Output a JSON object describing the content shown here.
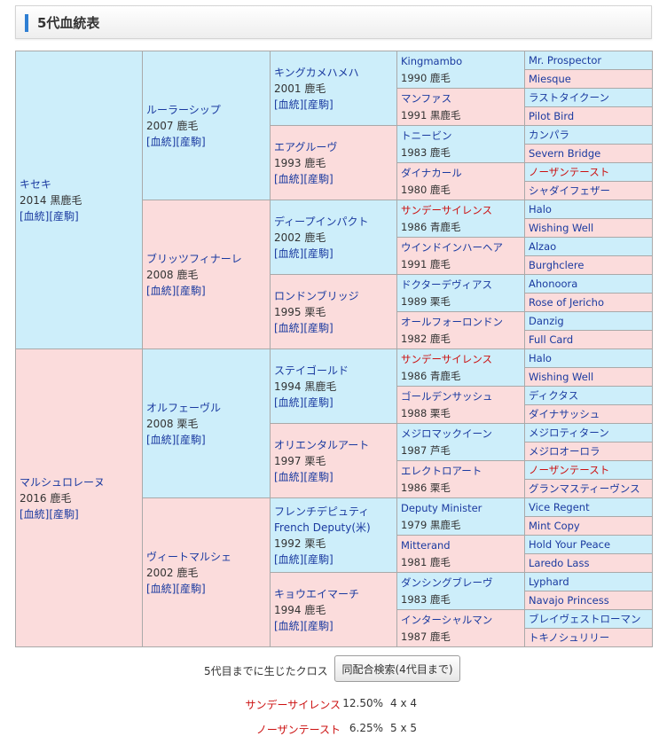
{
  "header": {
    "title": "5代血統表"
  },
  "links": {
    "pedigree": "[血統]",
    "progeny": "[産駒]"
  },
  "g1": [
    {
      "name": "キセキ",
      "year": "2014 黒鹿毛",
      "sex": "m"
    },
    {
      "name": "マルシュロレーヌ",
      "year": "2016 鹿毛",
      "sex": "f"
    }
  ],
  "g2": [
    {
      "name": "ルーラーシップ",
      "year": "2007 鹿毛",
      "sex": "m"
    },
    {
      "name": "ブリッツフィナーレ",
      "year": "2008 鹿毛",
      "sex": "f"
    },
    {
      "name": "オルフェーヴル",
      "year": "2008 栗毛",
      "sex": "m"
    },
    {
      "name": "ヴィートマルシェ",
      "year": "2002 鹿毛",
      "sex": "f"
    }
  ],
  "g3": [
    {
      "name": "キングカメハメハ",
      "year": "2001 鹿毛",
      "sex": "m"
    },
    {
      "name": "エアグルーヴ",
      "year": "1993 鹿毛",
      "sex": "f"
    },
    {
      "name": "ディープインパクト",
      "year": "2002 鹿毛",
      "sex": "m"
    },
    {
      "name": "ロンドンブリッジ",
      "year": "1995 栗毛",
      "sex": "f"
    },
    {
      "name": "ステイゴールド",
      "year": "1994 黒鹿毛",
      "sex": "m"
    },
    {
      "name": "オリエンタルアート",
      "year": "1997 栗毛",
      "sex": "f"
    },
    {
      "name": "フレンチデピュティ",
      "name2": "French Deputy(米)",
      "year": "1992 栗毛",
      "sex": "m"
    },
    {
      "name": "キョウエイマーチ",
      "year": "1994 鹿毛",
      "sex": "f"
    }
  ],
  "g4": [
    {
      "name": "Kingmambo",
      "year": "1990 鹿毛",
      "sex": "m"
    },
    {
      "name": "マンファス",
      "year": "1991 黒鹿毛",
      "sex": "f"
    },
    {
      "name": "トニービン",
      "year": "1983 鹿毛",
      "sex": "m"
    },
    {
      "name": "ダイナカール",
      "year": "1980 鹿毛",
      "sex": "f"
    },
    {
      "name": "サンデーサイレンス",
      "year": "1986 青鹿毛",
      "sex": "m",
      "red": true
    },
    {
      "name": "ウインドインハーヘア",
      "year": "1991 鹿毛",
      "sex": "f"
    },
    {
      "name": "ドクターデヴィアス",
      "year": "1989 栗毛",
      "sex": "m"
    },
    {
      "name": "オールフォーロンドン",
      "year": "1982 鹿毛",
      "sex": "f"
    },
    {
      "name": "サンデーサイレンス",
      "year": "1986 青鹿毛",
      "sex": "m",
      "red": true
    },
    {
      "name": "ゴールデンサッシュ",
      "year": "1988 栗毛",
      "sex": "f"
    },
    {
      "name": "メジロマックイーン",
      "year": "1987 芦毛",
      "sex": "m"
    },
    {
      "name": "エレクトロアート",
      "year": "1986 栗毛",
      "sex": "f"
    },
    {
      "name": "Deputy Minister",
      "year": "1979 黒鹿毛",
      "sex": "m"
    },
    {
      "name": "Mitterand",
      "year": "1981 鹿毛",
      "sex": "f"
    },
    {
      "name": "ダンシングブレーヴ",
      "year": "1983 鹿毛",
      "sex": "m"
    },
    {
      "name": "インターシャルマン",
      "year": "1987 鹿毛",
      "sex": "f"
    }
  ],
  "g5": [
    {
      "name": "Mr. Prospector",
      "sex": "m"
    },
    {
      "name": "Miesque",
      "sex": "f"
    },
    {
      "name": "ラストタイクーン",
      "sex": "m"
    },
    {
      "name": "Pilot Bird",
      "sex": "f"
    },
    {
      "name": "カンパラ",
      "sex": "m"
    },
    {
      "name": "Severn Bridge",
      "sex": "f"
    },
    {
      "name": "ノーザンテースト",
      "sex": "m",
      "red": true
    },
    {
      "name": "シャダイフェザー",
      "sex": "f"
    },
    {
      "name": "Halo",
      "sex": "m"
    },
    {
      "name": "Wishing Well",
      "sex": "f"
    },
    {
      "name": "Alzao",
      "sex": "m"
    },
    {
      "name": "Burghclere",
      "sex": "f"
    },
    {
      "name": "Ahonoora",
      "sex": "m"
    },
    {
      "name": "Rose of Jericho",
      "sex": "f"
    },
    {
      "name": "Danzig",
      "sex": "m"
    },
    {
      "name": "Full Card",
      "sex": "f"
    },
    {
      "name": "Halo",
      "sex": "m"
    },
    {
      "name": "Wishing Well",
      "sex": "f"
    },
    {
      "name": "ディクタス",
      "sex": "m"
    },
    {
      "name": "ダイナサッシュ",
      "sex": "f"
    },
    {
      "name": "メジロティターン",
      "sex": "m"
    },
    {
      "name": "メジロオーロラ",
      "sex": "f"
    },
    {
      "name": "ノーザンテースト",
      "sex": "m",
      "red": true
    },
    {
      "name": "グランマスティーヴンス",
      "sex": "f"
    },
    {
      "name": "Vice Regent",
      "sex": "m"
    },
    {
      "name": "Mint Copy",
      "sex": "f"
    },
    {
      "name": "Hold Your Peace",
      "sex": "m"
    },
    {
      "name": "Laredo Lass",
      "sex": "f"
    },
    {
      "name": "Lyphard",
      "sex": "m"
    },
    {
      "name": "Navajo Princess",
      "sex": "f"
    },
    {
      "name": "ブレイヴェストローマン",
      "sex": "m"
    },
    {
      "name": "トキノシュリリー",
      "sex": "f"
    }
  ],
  "cross": {
    "label": "5代目までに生じたクロス",
    "button": "同配合検索(4代目まで)",
    "items": [
      {
        "name": "サンデーサイレンス",
        "pct": "12.50%",
        "gen": "4 x 4"
      },
      {
        "name": "ノーザンテースト",
        "pct": "6.25%",
        "gen": "5 x 5"
      }
    ]
  }
}
